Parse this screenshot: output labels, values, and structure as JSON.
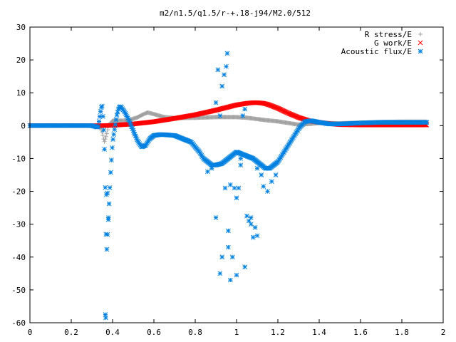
{
  "chart_data": {
    "type": "scatter",
    "title": "m2/n1.5/q1.5/r-+.18-j94/M2.0/512",
    "xlabel": "",
    "ylabel": "",
    "xlim": [
      0,
      2
    ],
    "ylim": [
      -60,
      30
    ],
    "xticks": [
      "0",
      "0.2",
      "0.4",
      "0.6",
      "0.8",
      "1",
      "1.2",
      "1.4",
      "1.6",
      "1.8",
      "2"
    ],
    "yticks": [
      "30",
      "20",
      "10",
      "0",
      "-10",
      "-20",
      "-30",
      "-40",
      "-50",
      "-60"
    ],
    "legend_position": "top-right",
    "grid": false,
    "series": [
      {
        "name": "R stress/E",
        "marker": "plus",
        "color": "#a0a0a0",
        "x": [
          0.0,
          0.1,
          0.2,
          0.3,
          0.34,
          0.35,
          0.36,
          0.37,
          0.38,
          0.4,
          0.43,
          0.47,
          0.52,
          0.55,
          0.57,
          0.6,
          0.65,
          0.7,
          0.8,
          0.9,
          1.0,
          1.05,
          1.1,
          1.15,
          1.2,
          1.25,
          1.3,
          1.35,
          1.4,
          1.5,
          1.6,
          1.7,
          1.8,
          1.92
        ],
        "y": [
          0,
          0,
          0,
          0,
          -0.5,
          -2,
          -5,
          -3,
          0,
          1.5,
          1.5,
          1.5,
          2.5,
          3.5,
          4,
          3.5,
          2.6,
          2.3,
          2.4,
          2.6,
          2.6,
          2.4,
          2.0,
          1.6,
          1.3,
          0.8,
          0.3,
          0.5,
          0.8,
          0.7,
          0.9,
          1.1,
          1.2,
          1.2
        ]
      },
      {
        "name": "G work/E",
        "marker": "cross",
        "color": "#ff0000",
        "x": [
          0.0,
          0.2,
          0.35,
          0.4,
          0.5,
          0.6,
          0.7,
          0.8,
          0.9,
          0.95,
          1.0,
          1.05,
          1.08,
          1.1,
          1.13,
          1.15,
          1.2,
          1.25,
          1.3,
          1.35,
          1.4,
          1.45,
          1.5,
          1.6,
          1.7,
          1.8,
          1.92
        ],
        "y": [
          0,
          0,
          0,
          0.1,
          0.5,
          1.2,
          2.2,
          3.3,
          4.7,
          5.5,
          6.3,
          6.8,
          7.0,
          7.0,
          6.8,
          6.5,
          5.3,
          3.8,
          2.5,
          1.5,
          1.0,
          0.6,
          0.3,
          0.2,
          0.2,
          0.2,
          0.2
        ]
      },
      {
        "name": "Acoustic flux/E",
        "marker": "star",
        "color": "#0080e0",
        "x": [
          0.0,
          0.1,
          0.2,
          0.3,
          0.33,
          0.345,
          0.35,
          0.355,
          0.36,
          0.365,
          0.37,
          0.38,
          0.39,
          0.4,
          0.42,
          0.43,
          0.44,
          0.46,
          0.48,
          0.5,
          0.52,
          0.54,
          0.56,
          0.58,
          0.6,
          0.63,
          0.66,
          0.7,
          0.74,
          0.78,
          0.8,
          0.82,
          0.84,
          0.86,
          0.88,
          0.9,
          0.93,
          0.96,
          1.0,
          1.04,
          1.08,
          1.1,
          1.12,
          1.14,
          1.16,
          1.18,
          1.2,
          1.22,
          1.25,
          1.28,
          1.3,
          1.33,
          1.36,
          1.4,
          1.45,
          1.5,
          1.6,
          1.7,
          1.8,
          1.92
        ],
        "y": [
          0,
          0,
          0,
          0,
          -0.5,
          5.5,
          6,
          1,
          -5,
          -20.5,
          -40,
          -28,
          -15,
          -5,
          3,
          5.5,
          5.8,
          4,
          1.5,
          -1.5,
          -4.5,
          -6.5,
          -6,
          -4,
          -3,
          -2.7,
          -2.8,
          -3,
          -4,
          -5,
          -6.5,
          -8,
          -10,
          -11,
          -12,
          -12,
          -11.5,
          -10,
          -8,
          -9,
          -10,
          -11,
          -12,
          -13,
          -13,
          -12,
          -11,
          -9,
          -6,
          -3,
          -1,
          1.2,
          1.5,
          1,
          0.5,
          0.5,
          0.8,
          1.0,
          1.0,
          1.0
        ]
      },
      {
        "name": "",
        "marker": "star",
        "color": "#0080e0",
        "x": [
          0.365,
          0.367,
          0.37,
          0.375,
          0.38,
          0.86,
          0.88,
          0.9,
          0.9,
          0.91,
          0.92,
          0.93,
          0.94,
          0.945,
          0.95,
          0.955,
          0.96,
          0.97,
          0.98,
          0.99,
          1.0,
          1.01,
          1.02,
          1.03,
          1.04,
          1.05,
          1.06,
          1.07,
          1.08,
          1.09,
          1.1,
          1.12,
          1.13,
          1.15,
          1.17,
          1.19,
          0.92,
          0.93,
          0.96,
          0.97,
          1.0,
          1.02,
          1.04,
          1.07,
          1.1
        ],
        "y": [
          -57.5,
          -58.5,
          -21,
          -20.5,
          -28,
          -14,
          -13,
          -28,
          7,
          17,
          -45,
          -40,
          15.5,
          -19,
          18,
          22,
          -37,
          -47,
          -40,
          -19,
          -45.5,
          -19,
          -10,
          3,
          5,
          -27.5,
          -29,
          -30,
          -34,
          -31,
          -33.5,
          -15,
          -18.5,
          -20,
          -17,
          -15,
          3,
          12,
          -32,
          -18,
          -22,
          -12,
          -43,
          -28,
          -13
        ]
      }
    ]
  }
}
